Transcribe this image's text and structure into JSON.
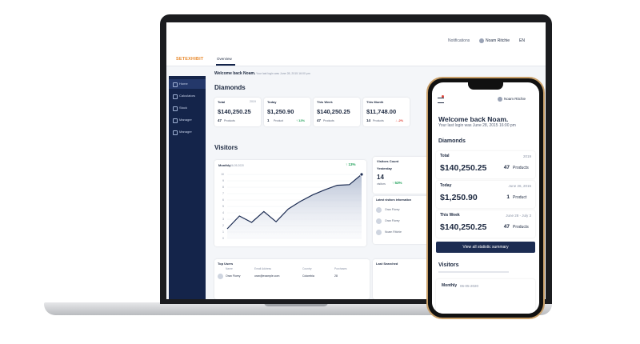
{
  "laptop": {
    "logo": "SETEXHIBIT",
    "tab": "Overview",
    "notifications": "Notifications",
    "user": "Noam Ritchie",
    "lang": "EN",
    "nav": [
      "Home",
      "Calculators",
      "Stock",
      "Manager",
      "Manager"
    ],
    "welcome": "Welcome back Noam.",
    "last_login": "Your last login was June 28, 2015 16:00 pm",
    "diamonds": {
      "title": "Diamonds",
      "cards": [
        {
          "label": "Total",
          "date": "2019",
          "amount": "$140,250.25",
          "count": "47",
          "unit": "Products"
        },
        {
          "label": "Today",
          "amount": "$1,250.90",
          "count": "1",
          "unit": "Product",
          "change": "↑ 12%"
        },
        {
          "label": "This Week",
          "amount": "$140,250.25",
          "count": "47",
          "unit": "Products"
        },
        {
          "label": "This Month",
          "amount": "$11,748.00",
          "count": "14",
          "unit": "Products",
          "change": "↓ -2%"
        }
      ]
    },
    "visitors": {
      "title": "Visitors",
      "period": "Monthly",
      "date": "06-05-2020",
      "badge": "↑ 13%",
      "chart": {
        "values": [
          1.5,
          3.5,
          2.5,
          4.2,
          2.6,
          4.6,
          5.8,
          6.8,
          7.6,
          8.3,
          8.4,
          10
        ],
        "ylim": [
          0,
          10
        ],
        "yticks": [
          0,
          1,
          2,
          3,
          4,
          5,
          6,
          7,
          8,
          9,
          10
        ]
      },
      "count_card": {
        "title": "Visitors Count",
        "label": "Yesterday",
        "value": "14",
        "unit": "visitors",
        "change": "↑ 53%"
      },
      "latest": {
        "title": "Latest visitors information",
        "names": [
          "Oran Florey",
          "Oran Florey",
          "Noam Ritchie"
        ]
      }
    },
    "top_users": {
      "title": "Top Users",
      "columns": [
        "Name",
        "Email Address",
        "Country",
        "Purchases"
      ],
      "rows": [
        [
          "Oran Florey",
          "oran@example.com",
          "Colombia",
          "28"
        ]
      ]
    },
    "last_searched": "Last Searched"
  },
  "phone": {
    "user": "Noam Ritchie",
    "welcome": "Welcome back Noam.",
    "last_login": "Your last login was June 28, 2015 16:00 pm",
    "diamonds_title": "Diamonds",
    "cards": [
      {
        "label": "Total",
        "date": "2019",
        "amount": "$140,250.25",
        "count": "47",
        "unit": "Products"
      },
      {
        "label": "Today",
        "date": "June 26, 2015",
        "amount": "$1,250.90",
        "count": "1",
        "unit": "Product"
      },
      {
        "label": "This Week",
        "date": "June 28 - July 3",
        "amount": "$140,250.25",
        "count": "47",
        "unit": "Products"
      }
    ],
    "button": "View all statistic summary",
    "visitors_title": "Visitors",
    "period": "Monthly",
    "date": "06-05-2020"
  }
}
